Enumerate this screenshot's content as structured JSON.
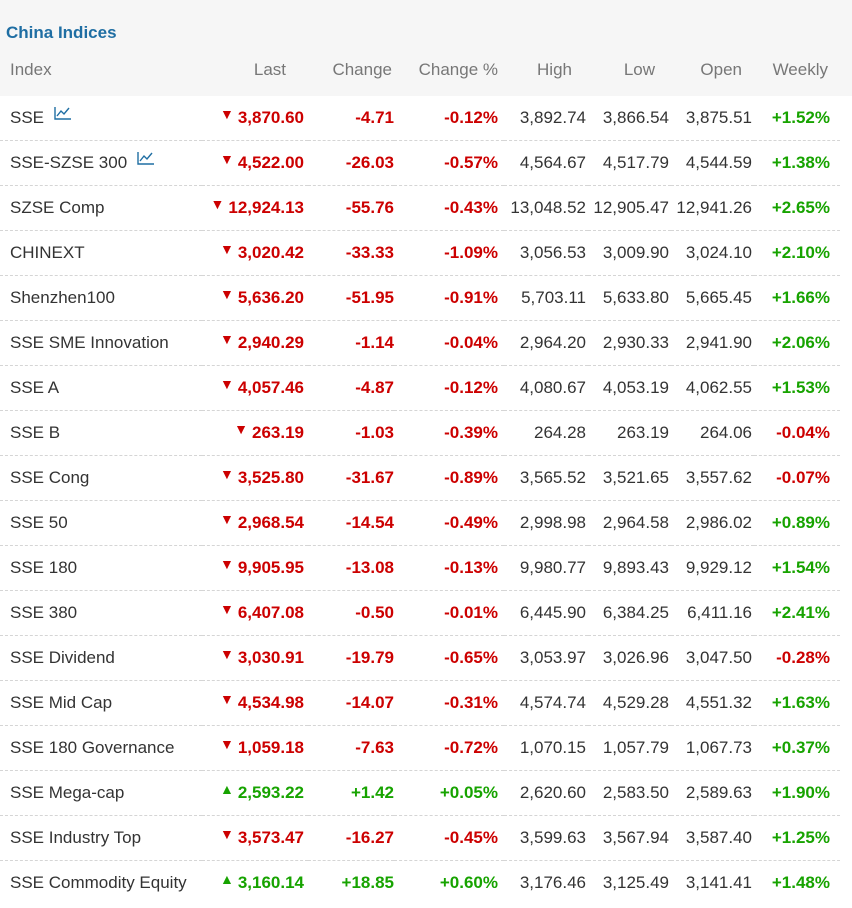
{
  "panel": {
    "title": "China Indices"
  },
  "columns": {
    "index": "Index",
    "last": "Last",
    "change": "Change",
    "change_pct": "Change %",
    "high": "High",
    "low": "Low",
    "open": "Open",
    "weekly": "Weekly"
  },
  "colors": {
    "down": "#cc0000",
    "up": "#17a300",
    "title": "#1f6ea3"
  },
  "rows": [
    {
      "name": "SSE",
      "chart_icon": true,
      "dir": "down",
      "last": "3,870.60",
      "change": "-4.71",
      "change_pct": "-0.12%",
      "high": "3,892.74",
      "low": "3,866.54",
      "open": "3,875.51",
      "weekly": "+1.52%",
      "weekly_dir": "up"
    },
    {
      "name": "SSE-SZSE 300",
      "chart_icon": true,
      "dir": "down",
      "last": "4,522.00",
      "change": "-26.03",
      "change_pct": "-0.57%",
      "high": "4,564.67",
      "low": "4,517.79",
      "open": "4,544.59",
      "weekly": "+1.38%",
      "weekly_dir": "up"
    },
    {
      "name": "SZSE Comp",
      "chart_icon": false,
      "dir": "down",
      "last": "12,924.13",
      "change": "-55.76",
      "change_pct": "-0.43%",
      "high": "13,048.52",
      "low": "12,905.47",
      "open": "12,941.26",
      "weekly": "+2.65%",
      "weekly_dir": "up"
    },
    {
      "name": "CHINEXT",
      "chart_icon": false,
      "dir": "down",
      "last": "3,020.42",
      "change": "-33.33",
      "change_pct": "-1.09%",
      "high": "3,056.53",
      "low": "3,009.90",
      "open": "3,024.10",
      "weekly": "+2.10%",
      "weekly_dir": "up"
    },
    {
      "name": "Shenzhen100",
      "chart_icon": false,
      "dir": "down",
      "last": "5,636.20",
      "change": "-51.95",
      "change_pct": "-0.91%",
      "high": "5,703.11",
      "low": "5,633.80",
      "open": "5,665.45",
      "weekly": "+1.66%",
      "weekly_dir": "up"
    },
    {
      "name": "SSE SME Innovation",
      "chart_icon": false,
      "dir": "down",
      "last": "2,940.29",
      "change": "-1.14",
      "change_pct": "-0.04%",
      "high": "2,964.20",
      "low": "2,930.33",
      "open": "2,941.90",
      "weekly": "+2.06%",
      "weekly_dir": "up"
    },
    {
      "name": "SSE A",
      "chart_icon": false,
      "dir": "down",
      "last": "4,057.46",
      "change": "-4.87",
      "change_pct": "-0.12%",
      "high": "4,080.67",
      "low": "4,053.19",
      "open": "4,062.55",
      "weekly": "+1.53%",
      "weekly_dir": "up"
    },
    {
      "name": "SSE B",
      "chart_icon": false,
      "dir": "down",
      "last": "263.19",
      "change": "-1.03",
      "change_pct": "-0.39%",
      "high": "264.28",
      "low": "263.19",
      "open": "264.06",
      "weekly": "-0.04%",
      "weekly_dir": "down"
    },
    {
      "name": "SSE Cong",
      "chart_icon": false,
      "dir": "down",
      "last": "3,525.80",
      "change": "-31.67",
      "change_pct": "-0.89%",
      "high": "3,565.52",
      "low": "3,521.65",
      "open": "3,557.62",
      "weekly": "-0.07%",
      "weekly_dir": "down"
    },
    {
      "name": "SSE 50",
      "chart_icon": false,
      "dir": "down",
      "last": "2,968.54",
      "change": "-14.54",
      "change_pct": "-0.49%",
      "high": "2,998.98",
      "low": "2,964.58",
      "open": "2,986.02",
      "weekly": "+0.89%",
      "weekly_dir": "up"
    },
    {
      "name": "SSE 180",
      "chart_icon": false,
      "dir": "down",
      "last": "9,905.95",
      "change": "-13.08",
      "change_pct": "-0.13%",
      "high": "9,980.77",
      "low": "9,893.43",
      "open": "9,929.12",
      "weekly": "+1.54%",
      "weekly_dir": "up"
    },
    {
      "name": "SSE 380",
      "chart_icon": false,
      "dir": "down",
      "last": "6,407.08",
      "change": "-0.50",
      "change_pct": "-0.01%",
      "high": "6,445.90",
      "low": "6,384.25",
      "open": "6,411.16",
      "weekly": "+2.41%",
      "weekly_dir": "up"
    },
    {
      "name": "SSE Dividend",
      "chart_icon": false,
      "dir": "down",
      "last": "3,030.91",
      "change": "-19.79",
      "change_pct": "-0.65%",
      "high": "3,053.97",
      "low": "3,026.96",
      "open": "3,047.50",
      "weekly": "-0.28%",
      "weekly_dir": "down"
    },
    {
      "name": "SSE Mid Cap",
      "chart_icon": false,
      "dir": "down",
      "last": "4,534.98",
      "change": "-14.07",
      "change_pct": "-0.31%",
      "high": "4,574.74",
      "low": "4,529.28",
      "open": "4,551.32",
      "weekly": "+1.63%",
      "weekly_dir": "up"
    },
    {
      "name": "SSE 180 Governance",
      "chart_icon": false,
      "dir": "down",
      "last": "1,059.18",
      "change": "-7.63",
      "change_pct": "-0.72%",
      "high": "1,070.15",
      "low": "1,057.79",
      "open": "1,067.73",
      "weekly": "+0.37%",
      "weekly_dir": "up"
    },
    {
      "name": "SSE Mega-cap",
      "chart_icon": false,
      "dir": "up",
      "last": "2,593.22",
      "change": "+1.42",
      "change_pct": "+0.05%",
      "high": "2,620.60",
      "low": "2,583.50",
      "open": "2,589.63",
      "weekly": "+1.90%",
      "weekly_dir": "up"
    },
    {
      "name": "SSE Industry Top",
      "chart_icon": false,
      "dir": "down",
      "last": "3,573.47",
      "change": "-16.27",
      "change_pct": "-0.45%",
      "high": "3,599.63",
      "low": "3,567.94",
      "open": "3,587.40",
      "weekly": "+1.25%",
      "weekly_dir": "up"
    },
    {
      "name": "SSE Commodity Equity",
      "chart_icon": false,
      "dir": "up",
      "last": "3,160.14",
      "change": "+18.85",
      "change_pct": "+0.60%",
      "high": "3,176.46",
      "low": "3,125.49",
      "open": "3,141.41",
      "weekly": "+1.48%",
      "weekly_dir": "up"
    }
  ]
}
